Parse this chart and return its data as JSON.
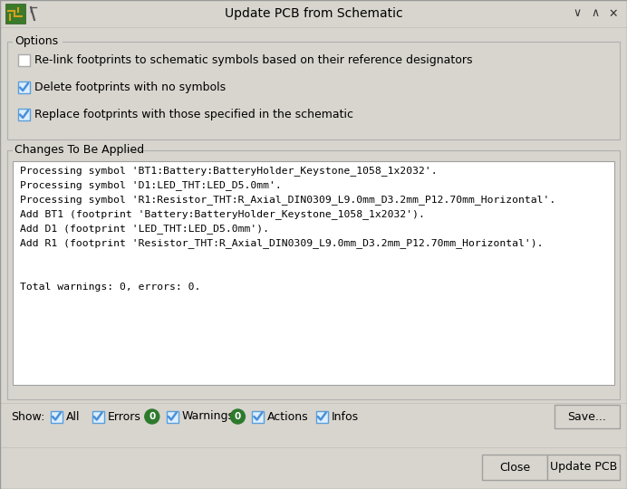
{
  "title": "Update PCB from Schematic",
  "bg_color": "#d8d5ce",
  "titlebar_text": "Update PCB from Schematic",
  "options_label": "Options",
  "checkbox1_checked": false,
  "checkbox1_text": "Re-link footprints to schematic symbols based on their reference designators",
  "checkbox2_checked": true,
  "checkbox2_text": "Delete footprints with no symbols",
  "checkbox3_checked": true,
  "checkbox3_text": "Replace footprints with those specified in the schematic",
  "changes_label": "Changes To Be Applied",
  "changes_text": [
    "Processing symbol 'BT1:Battery:BatteryHolder_Keystone_1058_1x2032'.",
    "Processing symbol 'D1:LED_THT:LED_D5.0mm'.",
    "Processing symbol 'R1:Resistor_THT:R_Axial_DIN0309_L9.0mm_D3.2mm_P12.70mm_Horizontal'.",
    "Add BT1 (footprint 'Battery:BatteryHolder_Keystone_1058_1x2032').",
    "Add D1 (footprint 'LED_THT:LED_D5.0mm').",
    "Add R1 (footprint 'Resistor_THT:R_Axial_DIN0309_L9.0mm_D3.2mm_P12.70mm_Horizontal').",
    "",
    "",
    "Total warnings: 0, errors: 0."
  ],
  "show_label": "Show:",
  "filter_items": [
    "All",
    "Errors",
    "Warnings",
    "Actions",
    "Infos"
  ],
  "filter_checked": [
    true,
    true,
    true,
    true,
    true
  ],
  "error_count": "0",
  "warning_count": "0",
  "badge_color": "#2d7a2d",
  "badge_text_color": "#ffffff",
  "save_btn": "Save...",
  "close_btn": "Close",
  "update_btn": "Update PCB",
  "text_area_bg": "#ffffff",
  "text_area_border": "#a0a0a0",
  "font_size": 9,
  "checkbox_color_checked": "#4a90d9",
  "checkbox_border_checked": "#5a9fd9",
  "checkbox_bg_checked": "#ddeeff",
  "group_border": "#b0b0b0",
  "btn_border": "#a0a0a0"
}
